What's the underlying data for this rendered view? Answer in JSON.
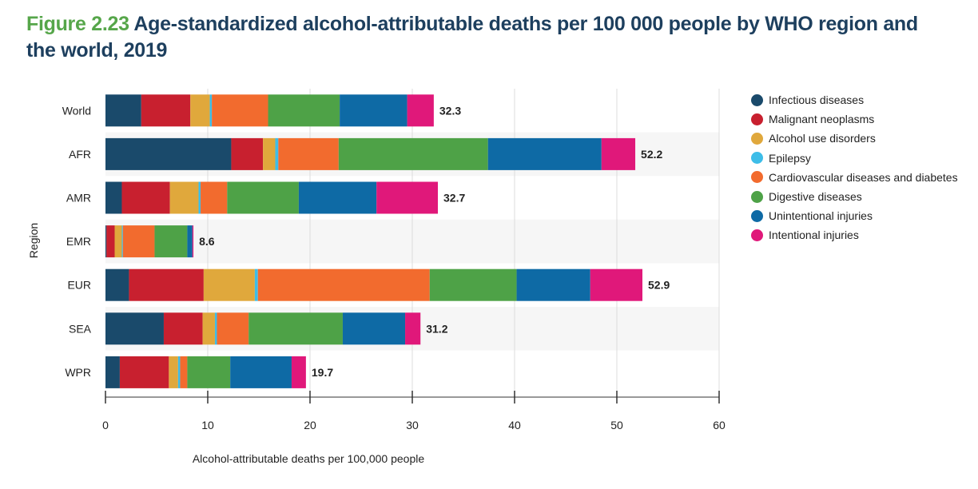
{
  "figure": {
    "number": "Figure 2.23",
    "title": "Age-standardized alcohol-attributable deaths per 100 000 people by WHO region and the world, 2019"
  },
  "chart_data": {
    "type": "bar",
    "orientation": "horizontal",
    "stacked": true,
    "xlabel": "Alcohol-attributable deaths per 100,000 people",
    "ylabel": "Region",
    "xlim": [
      0,
      60
    ],
    "xticks": [
      0,
      10,
      20,
      30,
      40,
      50,
      60
    ],
    "grid": true,
    "legend_position": "right",
    "categories": [
      "World",
      "AFR",
      "AMR",
      "EMR",
      "EUR",
      "SEA",
      "WPR"
    ],
    "totals": [
      32.3,
      52.2,
      32.7,
      8.6,
      52.9,
      31.2,
      19.7
    ],
    "series": [
      {
        "name": "Infectious diseases",
        "color": "#1a4a6b",
        "values": [
          3.5,
          12.3,
          1.6,
          0.1,
          2.3,
          5.7,
          1.4
        ]
      },
      {
        "name": "Malignant neoplasms",
        "color": "#c8202f",
        "values": [
          4.8,
          3.1,
          4.7,
          0.8,
          7.3,
          3.8,
          4.8
        ]
      },
      {
        "name": "Alcohol use disorders",
        "color": "#e0a83c",
        "values": [
          1.9,
          1.2,
          2.8,
          0.7,
          5.0,
          1.2,
          0.9
        ]
      },
      {
        "name": "Epilepsy",
        "color": "#3dbde8",
        "values": [
          0.2,
          0.3,
          0.2,
          0.1,
          0.3,
          0.2,
          0.2
        ]
      },
      {
        "name": "Cardiovascular diseases and diabetes",
        "color": "#f26b2e",
        "values": [
          5.5,
          5.9,
          2.6,
          3.1,
          16.8,
          3.1,
          0.7
        ]
      },
      {
        "name": "Digestive diseases",
        "color": "#4ea247",
        "values": [
          7.0,
          14.6,
          7.0,
          3.2,
          8.5,
          9.2,
          4.2
        ]
      },
      {
        "name": "Unintentional injuries",
        "color": "#0e6aa5",
        "values": [
          6.6,
          11.1,
          7.6,
          0.5,
          7.2,
          6.1,
          6.0
        ]
      },
      {
        "name": "Intentional injuries",
        "color": "#e0187a",
        "values": [
          2.6,
          3.3,
          6.0,
          0.1,
          5.1,
          1.5,
          1.4
        ]
      }
    ]
  }
}
